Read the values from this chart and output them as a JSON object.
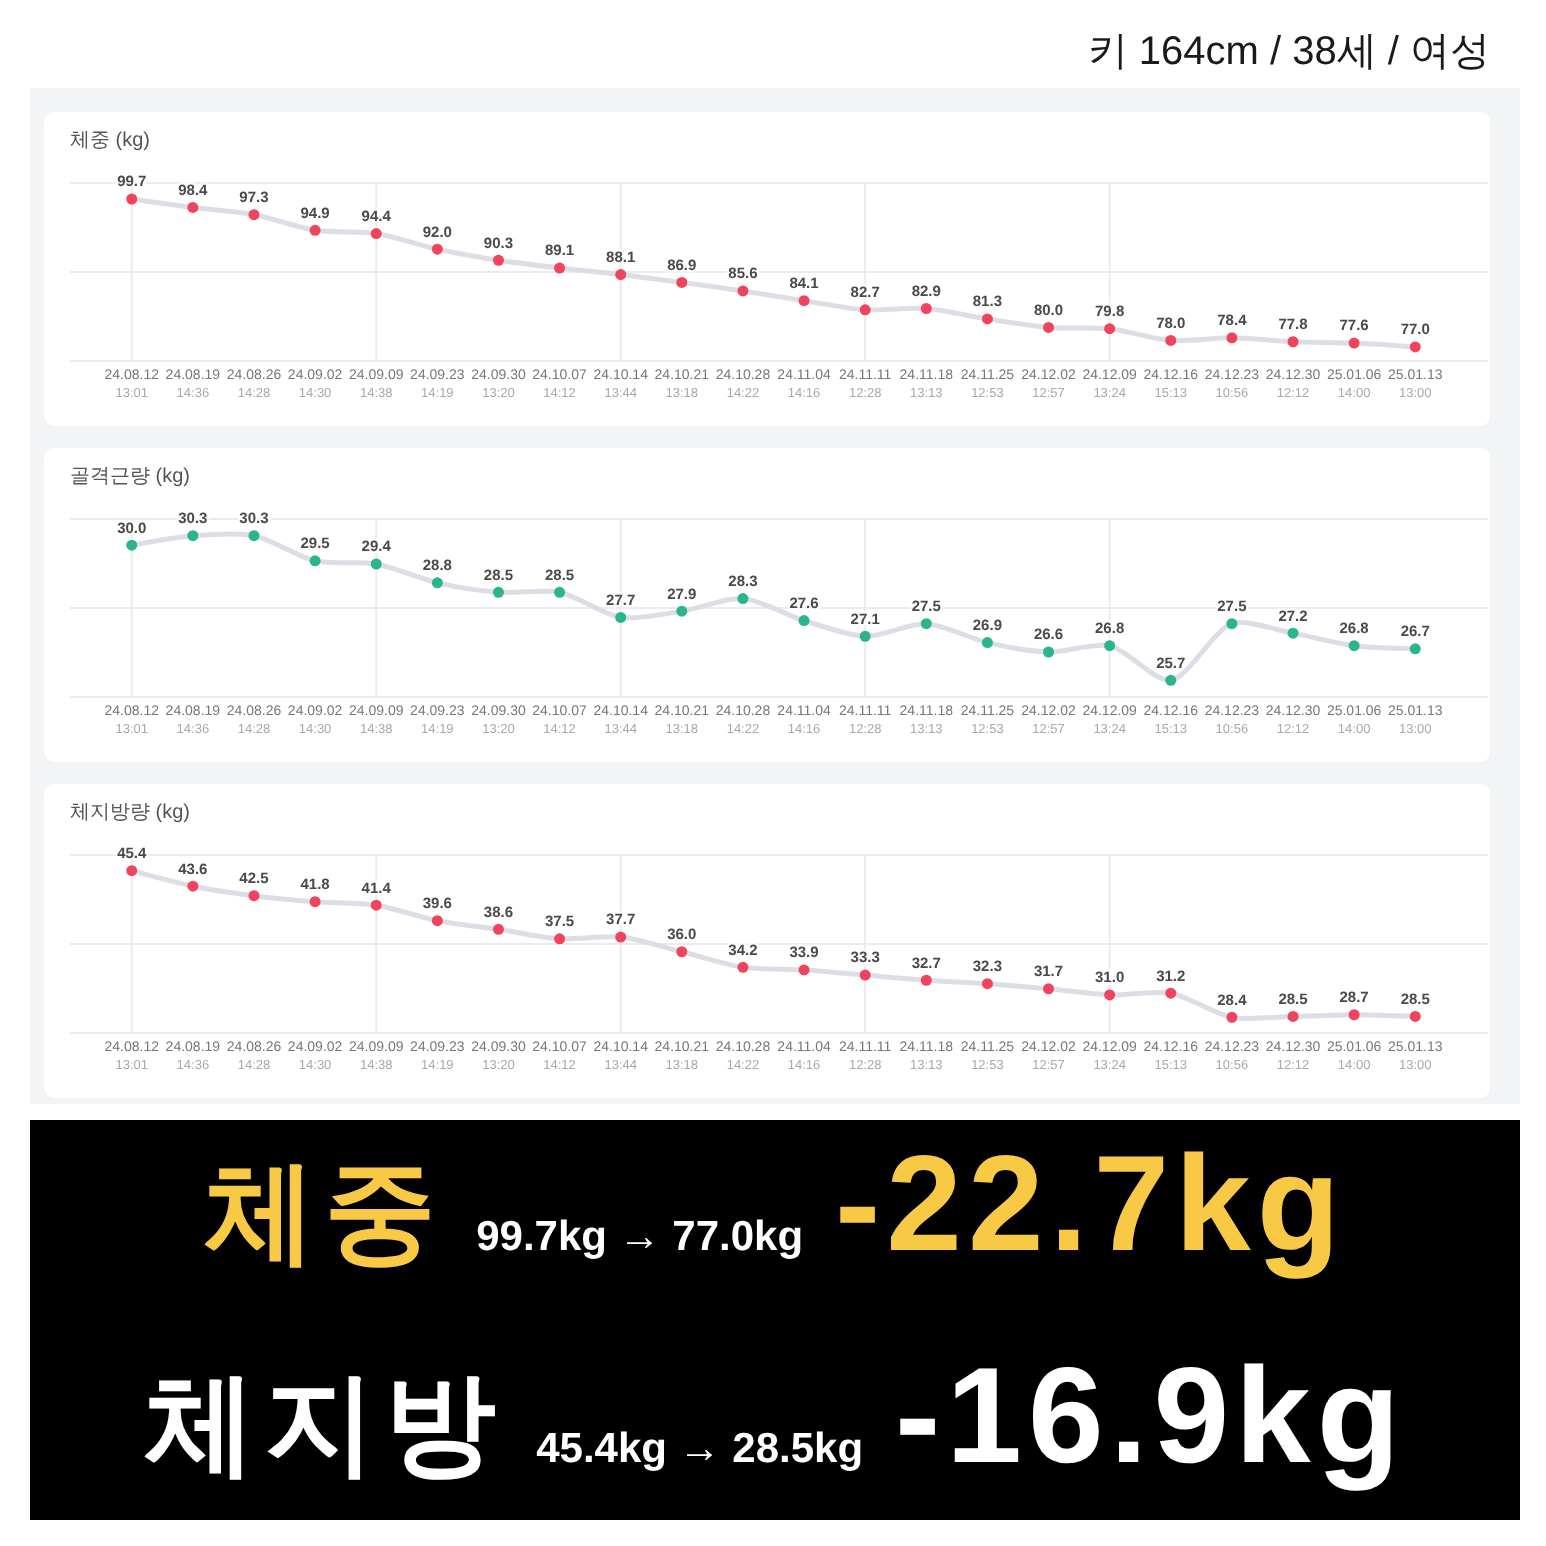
{
  "chart_data": [
    {
      "type": "other",
      "title": "키 164cm / 38세 / 여성"
    },
    {
      "type": "line",
      "title": "체중 (kg)",
      "categories": [
        "24.08.12\n13:01",
        "24.08.19\n14:36",
        "24.08.26\n14:28",
        "24.09.02\n14:30",
        "24.09.09\n14:38",
        "24.09.23\n14:19",
        "24.09.30\n13:20",
        "24.10.07\n14:12",
        "24.10.14\n13:44",
        "24.10.21\n13:18",
        "24.10.28\n14:22",
        "24.11.04\n14:16",
        "24.11.11\n12:28",
        "24.11.18\n13:13",
        "24.11.25\n12:53",
        "24.12.02\n12:57",
        "24.12.09\n13:24",
        "24.12.16\n15:13",
        "24.12.23\n10:56",
        "24.12.30\n12:12",
        "25.01.06\n14:00",
        "25.01.13\n13:00"
      ],
      "values": [
        99.7,
        98.4,
        97.3,
        94.9,
        94.4,
        92.0,
        90.3,
        89.1,
        88.1,
        86.9,
        85.6,
        84.1,
        82.7,
        82.9,
        81.3,
        80.0,
        79.8,
        78.0,
        78.4,
        77.8,
        77.6,
        77.0
      ],
      "value_labels": [
        "99.7",
        "98.4",
        "97.3",
        "94.9",
        "94.4",
        "92.0",
        "90.3",
        "89.1",
        "88.1",
        "86.9",
        "85.6",
        "84.1",
        "82.7",
        "82.9",
        "81.3",
        "80.0",
        "79.8",
        "78.0",
        "78.4",
        "77.8",
        "77.6",
        "77.0"
      ],
      "color": "#dddde6",
      "colors": [
        "#f0445e",
        "#f0445e",
        "#f0445e",
        "#f0445e",
        "#f0445e",
        "#f0445e",
        "#f0445e",
        "#f0445e",
        "#f0445e",
        "#f0445e",
        "#f0445e",
        "#f0445e",
        "#f0445e",
        "#f0445e",
        "#f0445e",
        "#f0445e",
        "#f0445e",
        "#f0445e",
        "#f0445e",
        "#f0445e",
        "#f0445e",
        "#f0445e"
      ],
      "ylim": [
        75,
        102
      ],
      "yticks": [
        {
          "value": 75,
          "label": null
        },
        {
          "value": 88.5,
          "label": null
        },
        {
          "value": 102,
          "label": null
        }
      ],
      "marker": "circle",
      "line_style": "solid",
      "grid": true,
      "tick_labels": "x"
    },
    {
      "type": "line",
      "title": "골격근량 (kg)",
      "categories": [
        "24.08.12\n13:01",
        "24.08.19\n14:36",
        "24.08.26\n14:28",
        "24.09.02\n14:30",
        "24.09.09\n14:38",
        "24.09.23\n14:19",
        "24.09.30\n13:20",
        "24.10.07\n14:12",
        "24.10.14\n13:44",
        "24.10.21\n13:18",
        "24.10.28\n14:22",
        "24.11.04\n14:16",
        "24.11.11\n12:28",
        "24.11.18\n13:13",
        "24.11.25\n12:53",
        "24.12.02\n12:57",
        "24.12.09\n13:24",
        "24.12.16\n15:13",
        "24.12.23\n10:56",
        "24.12.30\n12:12",
        "25.01.06\n14:00",
        "25.01.13\n13:00"
      ],
      "values": [
        30.0,
        30.3,
        30.3,
        29.5,
        29.4,
        28.8,
        28.5,
        28.5,
        27.7,
        27.9,
        28.3,
        27.6,
        27.1,
        27.5,
        26.9,
        26.6,
        26.8,
        25.7,
        27.5,
        27.2,
        26.8,
        26.7
      ],
      "value_labels": [
        "30.0",
        "30.3",
        "30.3",
        "29.5",
        "29.4",
        "28.8",
        "28.5",
        "28.5",
        "27.7",
        "27.9",
        "28.3",
        "27.6",
        "27.1",
        "27.5",
        "26.9",
        "26.6",
        "26.8",
        "25.7",
        "27.5",
        "27.2",
        "26.8",
        "26.7"
      ],
      "color": "#dddde6",
      "colors": [
        "#2bb58c",
        "#2bb58c",
        "#2bb58c",
        "#2bb58c",
        "#2bb58c",
        "#2bb58c",
        "#2bb58c",
        "#2bb58c",
        "#2bb58c",
        "#2bb58c",
        "#2bb58c",
        "#2bb58c",
        "#2bb58c",
        "#2bb58c",
        "#2bb58c",
        "#2bb58c",
        "#2bb58c",
        "#2bb58c",
        "#2bb58c",
        "#2bb58c",
        "#2bb58c",
        "#2bb58c"
      ],
      "ylim": [
        25.2,
        30.8
      ],
      "yticks": [
        {
          "value": 25.2,
          "label": null
        },
        {
          "value": 28.0,
          "label": null
        },
        {
          "value": 30.8,
          "label": null
        }
      ],
      "marker": "circle",
      "line_style": "solid",
      "grid": true,
      "tick_labels": "x"
    },
    {
      "type": "line",
      "title": "체지방량 (kg)",
      "categories": [
        "24.08.12\n13:01",
        "24.08.19\n14:36",
        "24.08.26\n14:28",
        "24.09.02\n14:30",
        "24.09.09\n14:38",
        "24.09.23\n14:19",
        "24.09.30\n13:20",
        "24.10.07\n14:12",
        "24.10.14\n13:44",
        "24.10.21\n13:18",
        "24.10.28\n14:22",
        "24.11.04\n14:16",
        "24.11.11\n12:28",
        "24.11.18\n13:13",
        "24.11.25\n12:53",
        "24.12.02\n12:57",
        "24.12.09\n13:24",
        "24.12.16\n15:13",
        "24.12.23\n10:56",
        "24.12.30\n12:12",
        "25.01.06\n14:00",
        "25.01.13\n13:00"
      ],
      "values": [
        45.4,
        43.6,
        42.5,
        41.8,
        41.4,
        39.6,
        38.6,
        37.5,
        37.7,
        36.0,
        34.2,
        33.9,
        33.3,
        32.7,
        32.3,
        31.7,
        31.0,
        31.2,
        28.4,
        28.5,
        28.7,
        28.5
      ],
      "value_labels": [
        "45.4",
        "43.6",
        "42.5",
        "41.8",
        "41.4",
        "39.6",
        "38.6",
        "37.5",
        "37.7",
        "36.0",
        "34.2",
        "33.9",
        "33.3",
        "32.7",
        "32.3",
        "31.7",
        "31.0",
        "31.2",
        "28.4",
        "28.5",
        "28.7",
        "28.5"
      ],
      "color": "#dddde6",
      "colors": [
        "#f0445e",
        "#f0445e",
        "#f0445e",
        "#f0445e",
        "#f0445e",
        "#f0445e",
        "#f0445e",
        "#f0445e",
        "#f0445e",
        "#f0445e",
        "#f0445e",
        "#f0445e",
        "#f0445e",
        "#f0445e",
        "#f0445e",
        "#f0445e",
        "#f0445e",
        "#f0445e",
        "#f0445e",
        "#f0445e",
        "#f0445e",
        "#f0445e"
      ],
      "ylim": [
        26.7,
        47.1
      ],
      "yticks": [
        {
          "value": 26.7,
          "label": null
        },
        {
          "value": 36.9,
          "label": null
        },
        {
          "value": 47.1,
          "label": null
        }
      ],
      "marker": "circle",
      "line_style": "solid",
      "grid": true,
      "tick_labels": "x"
    },
    {
      "type": "other",
      "annotations": [
        "체중",
        "99.7kg → 77.0kg",
        "-22.7kg",
        "체지방",
        "45.4kg → 28.5kg",
        "-16.9kg"
      ]
    }
  ]
}
